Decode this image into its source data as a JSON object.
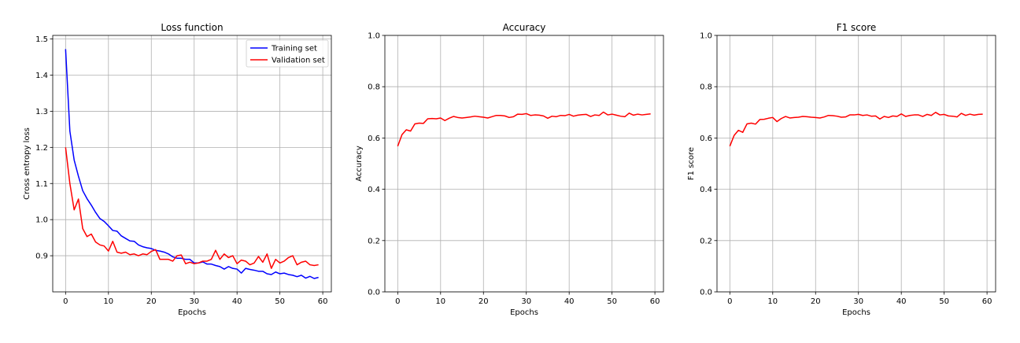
{
  "chart_data": [
    {
      "type": "line",
      "title": "Loss function",
      "xlabel": "Epochs",
      "ylabel": "Cross entropy loss",
      "xlim": [
        -3,
        62
      ],
      "ylim": [
        0.8,
        1.51
      ],
      "xticks": [
        0,
        10,
        20,
        30,
        40,
        50,
        60
      ],
      "yticks": [
        0.9,
        1.0,
        1.1,
        1.2,
        1.3,
        1.4,
        1.5
      ],
      "grid": true,
      "legend": "top-right",
      "series": [
        {
          "name": "Training set",
          "color": "#0000ff",
          "values": [
            1.472,
            1.245,
            1.165,
            1.12,
            1.08,
            1.058,
            1.04,
            1.02,
            1.003,
            0.995,
            0.983,
            0.97,
            0.968,
            0.955,
            0.948,
            0.941,
            0.94,
            0.93,
            0.925,
            0.922,
            0.92,
            0.915,
            0.913,
            0.91,
            0.905,
            0.897,
            0.893,
            0.893,
            0.89,
            0.89,
            0.88,
            0.88,
            0.883,
            0.877,
            0.877,
            0.873,
            0.87,
            0.863,
            0.87,
            0.865,
            0.863,
            0.852,
            0.865,
            0.862,
            0.86,
            0.857,
            0.857,
            0.85,
            0.848,
            0.855,
            0.85,
            0.852,
            0.848,
            0.846,
            0.842,
            0.846,
            0.838,
            0.843,
            0.837,
            0.84
          ]
        },
        {
          "name": "Validation set",
          "color": "#ff0000",
          "values": [
            1.2,
            1.1,
            1.027,
            1.057,
            0.975,
            0.953,
            0.96,
            0.938,
            0.93,
            0.927,
            0.913,
            0.94,
            0.91,
            0.907,
            0.91,
            0.903,
            0.905,
            0.9,
            0.905,
            0.903,
            0.912,
            0.917,
            0.89,
            0.89,
            0.89,
            0.885,
            0.9,
            0.902,
            0.878,
            0.882,
            0.878,
            0.88,
            0.885,
            0.885,
            0.89,
            0.915,
            0.89,
            0.905,
            0.895,
            0.9,
            0.878,
            0.888,
            0.885,
            0.875,
            0.88,
            0.898,
            0.882,
            0.905,
            0.865,
            0.89,
            0.88,
            0.885,
            0.895,
            0.9,
            0.875,
            0.882,
            0.885,
            0.875,
            0.873,
            0.875
          ]
        }
      ]
    },
    {
      "type": "line",
      "title": "Accuracy",
      "xlabel": "Epochs",
      "ylabel": "Accuracy",
      "xlim": [
        -3,
        62
      ],
      "ylim": [
        0.0,
        1.0
      ],
      "xticks": [
        0,
        10,
        20,
        30,
        40,
        50,
        60
      ],
      "yticks": [
        0.0,
        0.2,
        0.4,
        0.6,
        0.8,
        1.0
      ],
      "grid": true,
      "series": [
        {
          "color": "#ff0000",
          "values": [
            0.568,
            0.613,
            0.632,
            0.627,
            0.655,
            0.658,
            0.657,
            0.675,
            0.676,
            0.675,
            0.678,
            0.668,
            0.677,
            0.684,
            0.68,
            0.678,
            0.68,
            0.682,
            0.685,
            0.683,
            0.681,
            0.678,
            0.683,
            0.688,
            0.688,
            0.686,
            0.68,
            0.683,
            0.693,
            0.692,
            0.695,
            0.688,
            0.69,
            0.689,
            0.686,
            0.677,
            0.685,
            0.683,
            0.688,
            0.687,
            0.692,
            0.685,
            0.689,
            0.691,
            0.692,
            0.684,
            0.69,
            0.688,
            0.701,
            0.69,
            0.693,
            0.689,
            0.685,
            0.683,
            0.697,
            0.689,
            0.693,
            0.69,
            0.692,
            0.694
          ]
        }
      ]
    },
    {
      "type": "line",
      "title": "F1 score",
      "xlabel": "Epochs",
      "ylabel": "F1 score",
      "xlim": [
        -3,
        62
      ],
      "ylim": [
        0.0,
        1.0
      ],
      "xticks": [
        0,
        10,
        20,
        30,
        40,
        50,
        60
      ],
      "yticks": [
        0.0,
        0.2,
        0.4,
        0.6,
        0.8,
        1.0
      ],
      "grid": true,
      "series": [
        {
          "color": "#ff0000",
          "values": [
            0.568,
            0.61,
            0.63,
            0.622,
            0.655,
            0.658,
            0.654,
            0.672,
            0.673,
            0.677,
            0.68,
            0.664,
            0.676,
            0.684,
            0.678,
            0.68,
            0.681,
            0.684,
            0.683,
            0.681,
            0.68,
            0.678,
            0.682,
            0.688,
            0.687,
            0.685,
            0.681,
            0.682,
            0.69,
            0.69,
            0.692,
            0.688,
            0.69,
            0.685,
            0.686,
            0.674,
            0.684,
            0.68,
            0.686,
            0.684,
            0.694,
            0.684,
            0.688,
            0.69,
            0.69,
            0.684,
            0.692,
            0.688,
            0.7,
            0.69,
            0.692,
            0.686,
            0.685,
            0.682,
            0.696,
            0.688,
            0.693,
            0.689,
            0.692,
            0.693
          ]
        }
      ]
    }
  ]
}
